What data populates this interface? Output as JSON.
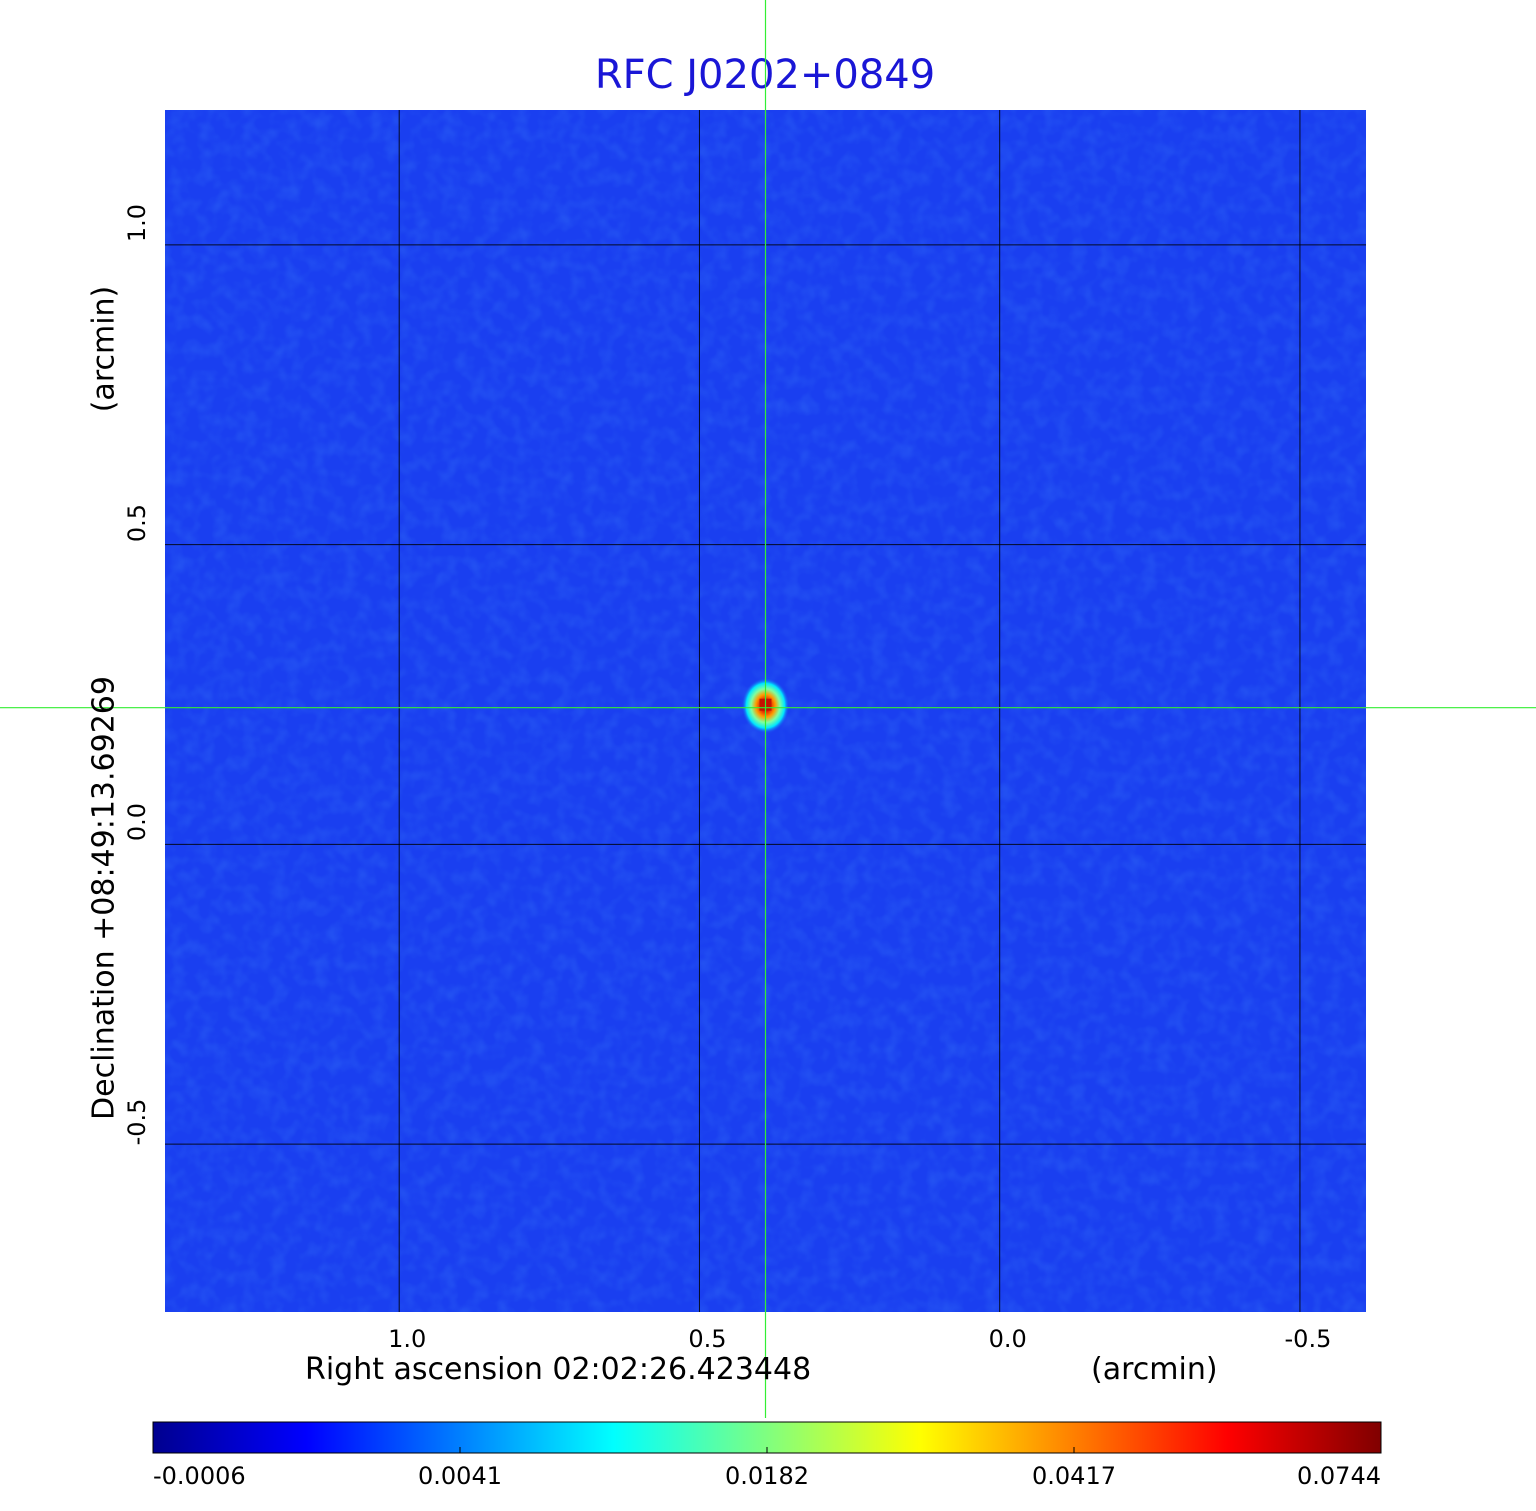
{
  "chart_data": {
    "type": "heatmap",
    "title": "RFC J0202+0849",
    "x_axis": {
      "label_left": "Right ascension  02:02:26.423448",
      "label_right": "(arcmin)",
      "ticks": [
        {
          "label": "1.0",
          "value": 1.0
        },
        {
          "label": "0.5",
          "value": 0.5
        },
        {
          "label": "0.0",
          "value": 0.0
        },
        {
          "label": "-0.5",
          "value": -0.5
        }
      ],
      "range": [
        1.39,
        -0.61
      ]
    },
    "y_axis": {
      "label_bottom": "Declination  +08:49:13.69269",
      "label_top": "(arcmin)",
      "ticks": [
        {
          "label": "1.0",
          "value": 1.0
        },
        {
          "label": "0.5",
          "value": 0.5
        },
        {
          "label": "0.0",
          "value": 0.0
        },
        {
          "label": "-0.5",
          "value": -0.5
        }
      ],
      "range": [
        -0.78,
        1.225
      ]
    },
    "grid": true,
    "crosshair": {
      "x": 0.39,
      "y": 0.228
    },
    "source": {
      "x": 0.39,
      "y": 0.228,
      "peak": 0.0744
    },
    "colorbar": {
      "colormap": "jet",
      "ticks": [
        "-0.0006",
        "0.0041",
        "0.0182",
        "0.0417",
        "0.0744"
      ],
      "min": -0.0006,
      "max": 0.0744
    },
    "colors": {
      "background_map": "#1a3ff0",
      "crosshair": "#33ee33",
      "title": "#1a16d6"
    }
  }
}
